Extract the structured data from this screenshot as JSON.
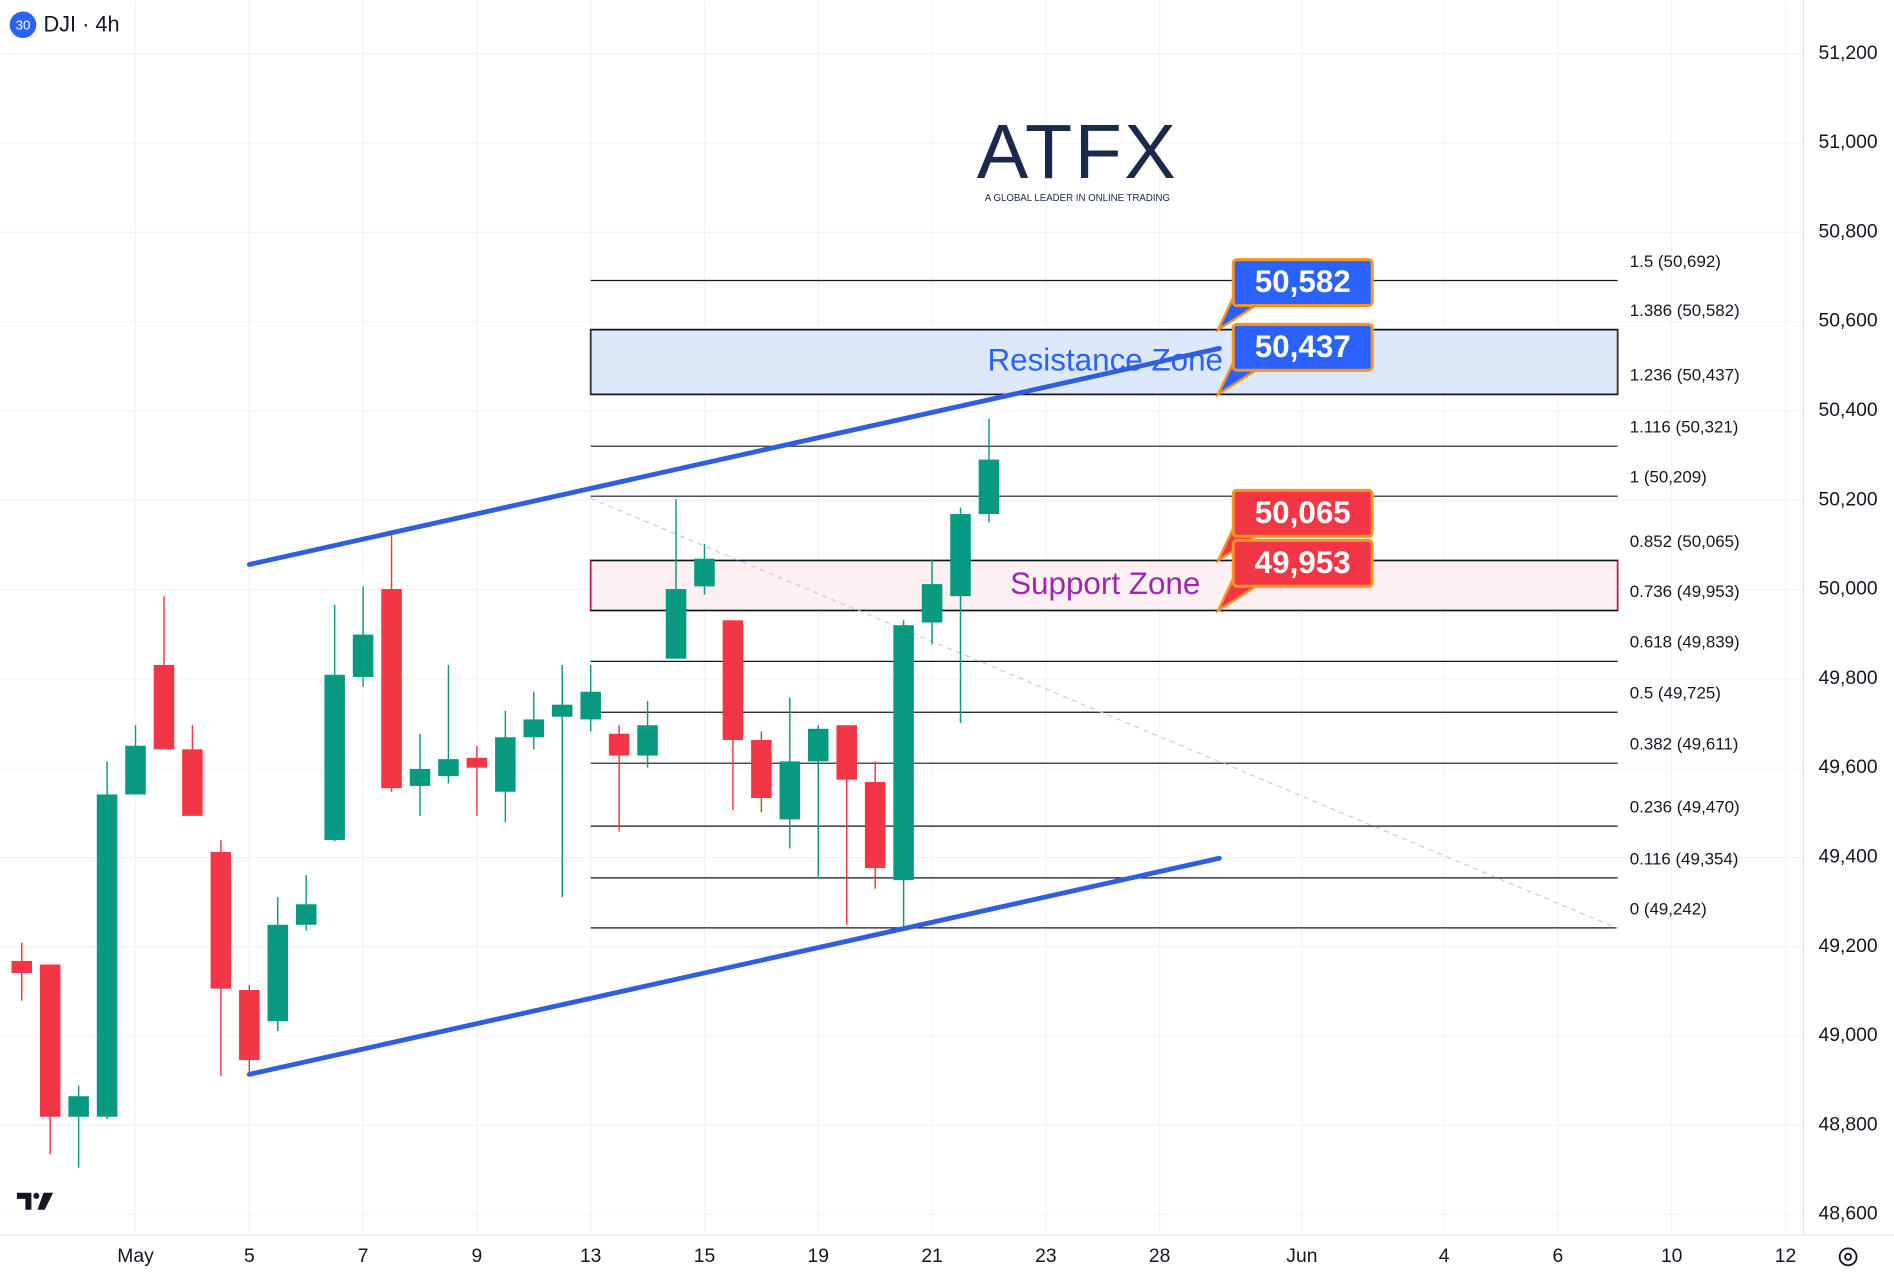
{
  "chart_data": {
    "type": "candlestick",
    "symbol_badge": "30",
    "title": "DJI · 4h",
    "x": [
      0,
      1,
      2,
      3,
      4,
      5,
      6,
      7,
      8,
      9,
      10,
      11,
      12,
      13,
      14,
      15,
      16,
      17,
      18,
      19,
      20,
      21,
      22,
      23,
      24,
      25,
      26,
      27,
      28,
      29,
      30,
      31,
      32,
      33,
      34
    ],
    "open": [
      49168,
      49160,
      48819,
      48819,
      49541,
      49831,
      49642,
      49412,
      49103,
      49033,
      49249,
      49439,
      49804,
      50001,
      49560,
      49582,
      49623,
      49547,
      49669,
      49715,
      49709,
      49677,
      49628,
      49845,
      50007,
      49931,
      49663,
      49485,
      49615,
      49696,
      49569,
      49349,
      49926,
      49985,
      50169
    ],
    "high": [
      49209,
      49160,
      48889,
      49615,
      49696,
      49985,
      49696,
      49439,
      49114,
      49311,
      49360,
      49966,
      50007,
      50129,
      49677,
      49831,
      49650,
      49728,
      49771,
      49831,
      49831,
      49696,
      49750,
      50202,
      50102,
      49931,
      49682,
      49758,
      49696,
      49696,
      49615,
      49931,
      50066,
      50183,
      50383
    ],
    "low": [
      49079,
      48735,
      48705,
      48814,
      49541,
      49642,
      49493,
      48911,
      48916,
      49011,
      49236,
      49436,
      49782,
      49547,
      49493,
      49566,
      49493,
      49479,
      49642,
      49311,
      49682,
      49458,
      49601,
      49845,
      49988,
      49506,
      49501,
      49420,
      49357,
      49249,
      49330,
      49236,
      49877,
      49701,
      50150
    ],
    "close": [
      49141,
      48819,
      48865,
      49541,
      49650,
      49642,
      49493,
      49106,
      48946,
      49249,
      49295,
      49809,
      49899,
      49555,
      49598,
      49620,
      49601,
      49669,
      49709,
      49742,
      49771,
      49628,
      49696,
      50001,
      50069,
      49663,
      49533,
      49615,
      49688,
      49574,
      49376,
      49920,
      50012,
      50169,
      50291
    ],
    "up_color": "#089981",
    "down_color": "#f23645",
    "xlim": [
      -0.764,
      62.63
    ],
    "ylim": [
      48554,
      51319
    ],
    "xticks": [
      {
        "value": 4,
        "label": "May"
      },
      {
        "value": 8,
        "label": "5"
      },
      {
        "value": 12,
        "label": "7"
      },
      {
        "value": 16,
        "label": "9"
      },
      {
        "value": 20,
        "label": "13"
      },
      {
        "value": 24,
        "label": "15"
      },
      {
        "value": 28,
        "label": "19"
      },
      {
        "value": 32,
        "label": "21"
      },
      {
        "value": 36,
        "label": "23"
      },
      {
        "value": 40,
        "label": "28"
      },
      {
        "value": 45,
        "label": "Jun"
      },
      {
        "value": 50,
        "label": "4"
      },
      {
        "value": 54,
        "label": "6"
      },
      {
        "value": 58,
        "label": "10"
      },
      {
        "value": 62,
        "label": "12"
      }
    ],
    "yticks": [
      {
        "value": 48600,
        "label": "48,600"
      },
      {
        "value": 48800,
        "label": "48,800"
      },
      {
        "value": 49000,
        "label": "49,000"
      },
      {
        "value": 49200,
        "label": "49,200"
      },
      {
        "value": 49400,
        "label": "49,400"
      },
      {
        "value": 49600,
        "label": "49,600"
      },
      {
        "value": 49800,
        "label": "49,800"
      },
      {
        "value": 50000,
        "label": "50,000"
      },
      {
        "value": 50200,
        "label": "50,200"
      },
      {
        "value": 50400,
        "label": "50,400"
      },
      {
        "value": 50600,
        "label": "50,600"
      },
      {
        "value": 50800,
        "label": "50,800"
      },
      {
        "value": 51000,
        "label": "51,000"
      },
      {
        "value": 51200,
        "label": "51,200"
      }
    ],
    "grid": true,
    "fib_x": [
      20,
      56.1
    ],
    "fib_levels": [
      {
        "value": 50692,
        "label": "1.5 (50,692)"
      },
      {
        "value": 50582,
        "label": "1.386 (50,582)"
      },
      {
        "value": 50437,
        "label": "1.236 (50,437)"
      },
      {
        "value": 50321,
        "label": "1.116 (50,321)"
      },
      {
        "value": 50209,
        "label": "1 (50,209)"
      },
      {
        "value": 50065,
        "label": "0.852 (50,065)"
      },
      {
        "value": 49953,
        "label": "0.736 (49,953)"
      },
      {
        "value": 49839,
        "label": "0.618 (49,839)"
      },
      {
        "value": 49725,
        "label": "0.5 (49,725)"
      },
      {
        "value": 49611,
        "label": "0.382 (49,611)"
      },
      {
        "value": 49470,
        "label": "0.236 (49,470)"
      },
      {
        "value": 49354,
        "label": "0.116 (49,354)"
      },
      {
        "value": 49242,
        "label": "0 (49,242)"
      }
    ],
    "zones": [
      {
        "label": "Resistance Zone",
        "range": [
          50437,
          50582
        ],
        "fill": "#dde8fb",
        "stroke": "#333333",
        "text_color": "#2962ff"
      },
      {
        "label": "Support Zone",
        "range": [
          49953,
          50065
        ],
        "fill": "#fdf0f3",
        "stroke": "#c2185b",
        "text_color": "#9c27b0"
      }
    ],
    "callouts": [
      {
        "value": 50582,
        "label": "50,582",
        "color": "#2962ff"
      },
      {
        "value": 50437,
        "label": "50,437",
        "color": "#2962ff"
      },
      {
        "value": 50065,
        "label": "50,065",
        "color": "#f23645"
      },
      {
        "value": 49953,
        "label": "49,953",
        "color": "#f23645"
      }
    ],
    "trendlines": [
      {
        "x": [
          8,
          42.1
        ],
        "values": [
          50056,
          50540
        ],
        "color": "#2f5fe0"
      },
      {
        "x": [
          8,
          42.1
        ],
        "values": [
          48914,
          49398
        ],
        "color": "#2f5fe0"
      }
    ],
    "dashed_line": {
      "x": [
        20,
        56.1
      ],
      "values": [
        50204,
        49241
      ],
      "color": "#c8ccd4"
    }
  },
  "logo": {
    "name": "ATFX",
    "tagline": "A GLOBAL LEADER IN ONLINE TRADING"
  }
}
